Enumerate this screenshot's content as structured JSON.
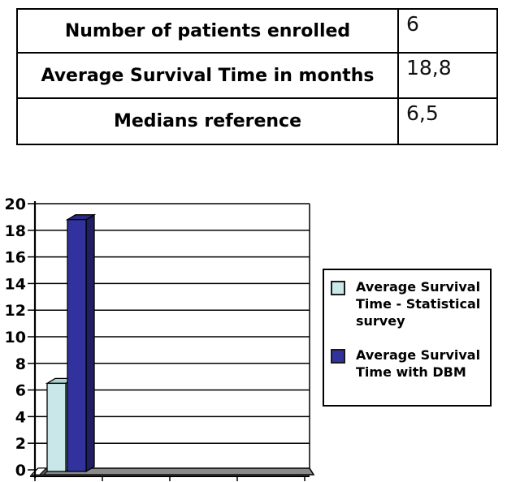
{
  "table": {
    "rows": [
      {
        "label": "Number of patients enrolled",
        "value": "6"
      },
      {
        "label": "Average Survival Time in months",
        "value": "18,8"
      },
      {
        "label": "Medians reference",
        "value": "6,5"
      }
    ]
  },
  "chart_data": {
    "type": "bar",
    "style": "3d-column",
    "title": "",
    "categories": [
      ""
    ],
    "series": [
      {
        "name": "Average Survival Time - Statistical survey",
        "lines": [
          "Average Survival",
          "Time - Statistical",
          "survey"
        ],
        "values": [
          6.5
        ],
        "color": "#c9e7e8",
        "top_color": "#aed3d5",
        "side_color": "#8fb7b9"
      },
      {
        "name": "Average Survival Time with DBM",
        "lines": [
          "Average Survival",
          "Time with DBM"
        ],
        "values": [
          18.8
        ],
        "color": "#32329e",
        "top_color": "#2a2a86",
        "side_color": "#1f1f62"
      }
    ],
    "ylim": [
      0,
      20
    ],
    "ytick_step": 2,
    "yticks": [
      0,
      2,
      4,
      6,
      8,
      10,
      12,
      14,
      16,
      18,
      20
    ],
    "grid": true,
    "legend_position": "right",
    "wall_color": "#ffffff",
    "floor_color": "#8a8a8a",
    "axis_color": "#000000"
  }
}
